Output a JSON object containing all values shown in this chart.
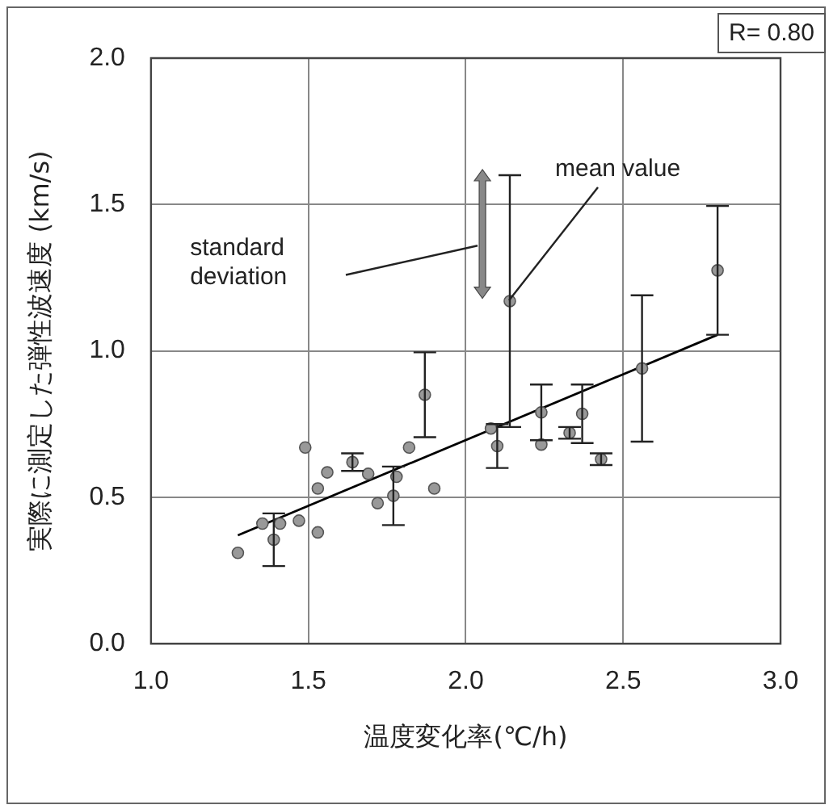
{
  "chart_data": {
    "type": "scatter",
    "xlabel": "温度変化率(℃/h)",
    "ylabel": "実際に測定した弾性波速度 (km/s)",
    "xlim": [
      1.0,
      3.0
    ],
    "xticks": [
      {
        "value": 1.0,
        "label": "1.0"
      },
      {
        "value": 1.5,
        "label": "1.5"
      },
      {
        "value": 2.0,
        "label": "2.0"
      },
      {
        "value": 2.5,
        "label": "2.5"
      },
      {
        "value": 3.0,
        "label": "3.0"
      }
    ],
    "ylim": [
      0.0,
      2.0
    ],
    "yticks": [
      {
        "value": 0.0,
        "label": "0.0"
      },
      {
        "value": 0.5,
        "label": "0.5"
      },
      {
        "value": 1.0,
        "label": "1.0"
      },
      {
        "value": 1.5,
        "label": "1.5"
      },
      {
        "value": 2.0,
        "label": "2.0"
      }
    ],
    "grid": true,
    "legend": false,
    "marker": "circle",
    "series": [
      {
        "type": "scatter",
        "color": "#999999",
        "x": [
          1.276,
          1.354,
          1.41,
          1.39,
          1.47,
          1.49,
          1.53,
          1.53,
          1.56,
          1.64,
          1.69,
          1.72,
          1.77,
          1.78,
          1.82,
          1.87,
          1.9,
          2.08,
          2.1,
          2.14,
          2.24,
          2.24,
          2.33,
          2.37,
          2.43,
          2.56,
          2.8
        ],
        "values": [
          0.31,
          0.41,
          0.41,
          0.355,
          0.42,
          0.67,
          0.38,
          0.53,
          0.585,
          0.62,
          0.58,
          0.48,
          0.505,
          0.57,
          0.67,
          0.85,
          0.53,
          0.735,
          0.675,
          1.17,
          0.79,
          0.68,
          0.72,
          0.785,
          0.63,
          0.94,
          1.275
        ],
        "errors": [
          null,
          null,
          null,
          0.09,
          null,
          null,
          null,
          null,
          null,
          0.03,
          null,
          null,
          0.1,
          null,
          null,
          0.145,
          null,
          null,
          0.075,
          0.43,
          0.095,
          null,
          0.02,
          0.1,
          0.02,
          0.25,
          0.22
        ]
      },
      {
        "type": "line",
        "color": "#000000",
        "x": [
          1.276,
          2.8
        ],
        "values": [
          0.37,
          1.055
        ],
        "marker": "none",
        "line_style": "solid"
      }
    ],
    "annotations": [
      "R= 0.80",
      "standard deviation",
      {
        "text": "mean value",
        "x": 2.14,
        "y": 1.17
      }
    ]
  }
}
